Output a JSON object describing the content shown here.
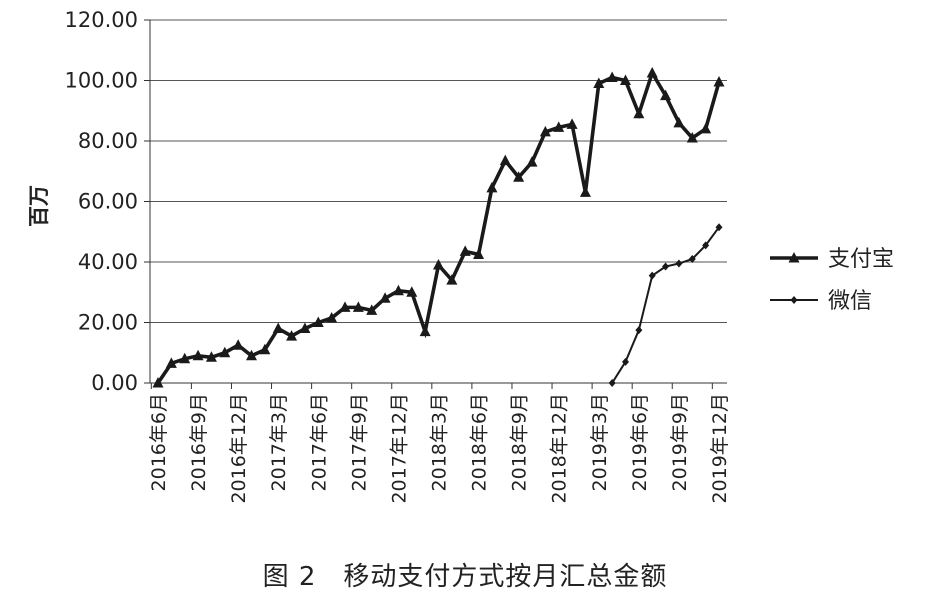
{
  "chart_data": {
    "type": "line",
    "ylabel": "百万",
    "xlabel": "",
    "ylim": [
      0,
      120
    ],
    "y_ticks": [
      "0.00",
      "20.00",
      "40.00",
      "60.00",
      "80.00",
      "100.00",
      "120.00"
    ],
    "grid": "horizontal",
    "legend_position": "right",
    "x_tick_labels": [
      "2016年6月",
      "2016年9月",
      "2016年12月",
      "2017年3月",
      "2017年6月",
      "2017年9月",
      "2017年12月",
      "2018年3月",
      "2018年6月",
      "2018年9月",
      "2018年12月",
      "2019年3月",
      "2019年6月",
      "2019年9月",
      "2019年12月"
    ],
    "x": [
      "2016-06",
      "2016-07",
      "2016-08",
      "2016-09",
      "2016-10",
      "2016-11",
      "2016-12",
      "2017-01",
      "2017-02",
      "2017-03",
      "2017-04",
      "2017-05",
      "2017-06",
      "2017-07",
      "2017-08",
      "2017-09",
      "2017-10",
      "2017-11",
      "2017-12",
      "2018-01",
      "2018-02",
      "2018-03",
      "2018-04",
      "2018-05",
      "2018-06",
      "2018-07",
      "2018-08",
      "2018-09",
      "2018-10",
      "2018-11",
      "2018-12",
      "2019-01",
      "2019-02",
      "2019-03",
      "2019-04",
      "2019-05",
      "2019-06",
      "2019-07",
      "2019-08",
      "2019-09",
      "2019-10",
      "2019-11",
      "2019-12"
    ],
    "series": [
      {
        "name": "支付宝",
        "color": "#1a1a1a",
        "marker": "triangle",
        "values": [
          0,
          6.5,
          8,
          9,
          8.5,
          10,
          12.5,
          9,
          11,
          18,
          15.5,
          18,
          20,
          21.5,
          25,
          25,
          24,
          28,
          30.5,
          30,
          17,
          39,
          34,
          43.5,
          42.5,
          64.5,
          73.5,
          68,
          73,
          83,
          84.5,
          85.5,
          63,
          99,
          101,
          100,
          89,
          102.5,
          95,
          86,
          81,
          84,
          99.5
        ]
      },
      {
        "name": "微信",
        "color": "#1a1a1a",
        "marker": "diamond",
        "values": [
          null,
          null,
          null,
          null,
          null,
          null,
          null,
          null,
          null,
          null,
          null,
          null,
          null,
          null,
          null,
          null,
          null,
          null,
          null,
          null,
          null,
          null,
          null,
          null,
          null,
          null,
          null,
          null,
          null,
          null,
          null,
          null,
          null,
          null,
          0,
          7,
          17.5,
          35.5,
          38.5,
          39.5,
          41,
          45.5,
          51.5
        ]
      }
    ]
  },
  "caption": "图 2　移动支付方式按月汇总金额"
}
